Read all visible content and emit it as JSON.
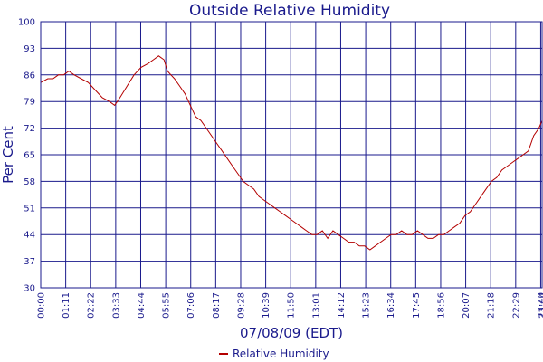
{
  "chart_data": {
    "type": "line",
    "title": "Outside Relative Humidity",
    "xlabel": "07/08/09 (EDT)",
    "ylabel": "Per Cent",
    "ylim": [
      30,
      100
    ],
    "yticks": [
      30,
      37,
      44,
      51,
      58,
      65,
      72,
      79,
      86,
      93,
      100
    ],
    "x_tick_labels": [
      "00:00",
      "01:11",
      "02:22",
      "03:33",
      "04:44",
      "05:55",
      "07:06",
      "08:17",
      "09:28",
      "10:39",
      "11:50",
      "13:01",
      "14:12",
      "15:23",
      "16:34",
      "17:45",
      "18:56",
      "20:07",
      "21:18",
      "22:29",
      "23:40",
      "23:44"
    ],
    "grid": true,
    "legend_position": "bottom-center",
    "series": [
      {
        "name": "Relative Humidity",
        "color": "#b30000",
        "x": [
          "00:00",
          "00:20",
          "00:35",
          "00:50",
          "01:05",
          "01:20",
          "01:35",
          "01:55",
          "02:15",
          "02:35",
          "02:55",
          "03:15",
          "03:30",
          "03:45",
          "04:05",
          "04:25",
          "04:45",
          "05:05",
          "05:20",
          "05:35",
          "05:50",
          "06:00",
          "06:10",
          "06:20",
          "06:35",
          "06:50",
          "07:05",
          "07:20",
          "07:35",
          "07:50",
          "08:05",
          "08:20",
          "08:35",
          "08:50",
          "09:05",
          "09:20",
          "09:35",
          "09:50",
          "10:05",
          "10:20",
          "10:35",
          "10:50",
          "11:05",
          "11:20",
          "11:35",
          "11:50",
          "12:05",
          "12:20",
          "12:35",
          "12:50",
          "13:05",
          "13:20",
          "13:35",
          "13:50",
          "14:05",
          "14:20",
          "14:35",
          "14:50",
          "15:05",
          "15:20",
          "15:35",
          "15:50",
          "16:05",
          "16:20",
          "16:35",
          "16:50",
          "17:05",
          "17:20",
          "17:35",
          "17:50",
          "18:05",
          "18:20",
          "18:35",
          "18:50",
          "19:05",
          "19:20",
          "19:35",
          "19:50",
          "20:05",
          "20:20",
          "20:35",
          "20:50",
          "21:05",
          "21:20",
          "21:35",
          "21:50",
          "22:05",
          "22:20",
          "22:35",
          "22:50",
          "23:05",
          "23:20",
          "23:35",
          "23:44"
        ],
        "y": [
          84,
          85,
          85,
          86,
          86,
          87,
          86,
          85,
          84,
          82,
          80,
          79,
          78,
          80,
          83,
          86,
          88,
          89,
          90,
          91,
          90,
          87,
          86,
          85,
          83,
          81,
          78,
          75,
          74,
          72,
          70,
          68,
          66,
          64,
          62,
          60,
          58,
          57,
          56,
          54,
          53,
          52,
          51,
          50,
          49,
          48,
          47,
          46,
          45,
          44,
          44,
          45,
          43,
          45,
          44,
          43,
          42,
          42,
          41,
          41,
          40,
          41,
          42,
          43,
          44,
          44,
          45,
          44,
          44,
          45,
          44,
          43,
          43,
          44,
          44,
          45,
          46,
          47,
          49,
          50,
          52,
          54,
          56,
          58,
          59,
          61,
          62,
          63,
          64,
          65,
          66,
          70,
          72,
          74
        ]
      }
    ]
  }
}
